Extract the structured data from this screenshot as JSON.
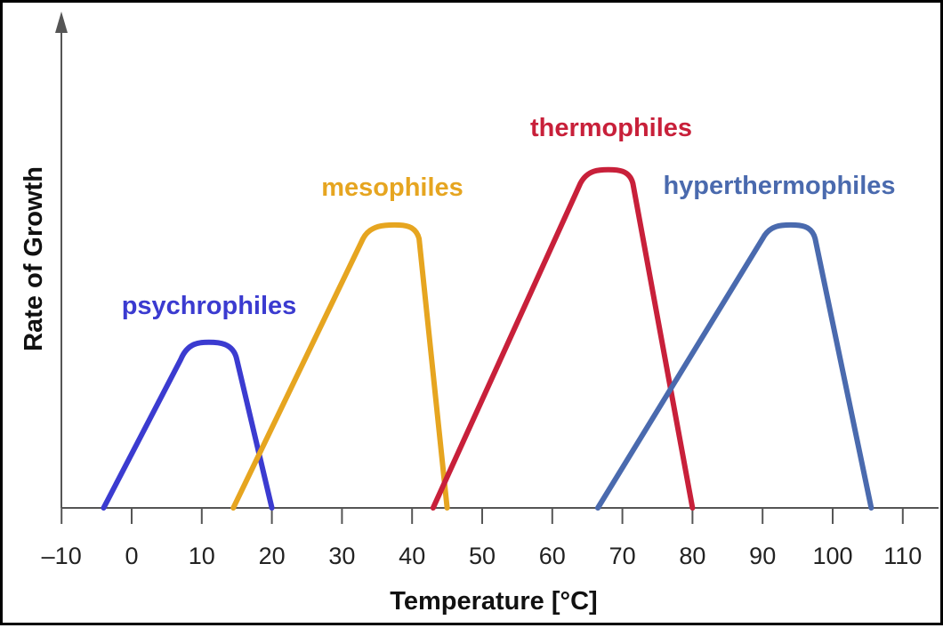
{
  "chart_data": {
    "type": "line",
    "title": "",
    "xlabel": "Temperature [°C]",
    "ylabel": "Rate of Growth",
    "xlim": [
      -10,
      112
    ],
    "ylim": [
      0,
      100
    ],
    "x_ticks": [
      -10,
      0,
      10,
      20,
      30,
      40,
      50,
      60,
      70,
      80,
      90,
      100,
      110
    ],
    "x_tick_labels": [
      "–10",
      "0",
      "10",
      "20",
      "30",
      "40",
      "50",
      "60",
      "70",
      "80",
      "90",
      "100",
      "110"
    ],
    "grid": false,
    "y_tick_labels_shown": false,
    "series": [
      {
        "name": "psychrophiles",
        "color": "#3b3bd0",
        "points": [
          [
            -4,
            0
          ],
          [
            7,
            43
          ],
          [
            11,
            48
          ],
          [
            15,
            43
          ],
          [
            20,
            0
          ]
        ]
      },
      {
        "name": "mesophiles",
        "color": "#e6a520",
        "points": [
          [
            14.5,
            0
          ],
          [
            33,
            78
          ],
          [
            37.5,
            82
          ],
          [
            41,
            78
          ],
          [
            45,
            0
          ]
        ]
      },
      {
        "name": "thermophiles",
        "color": "#c8203a",
        "points": [
          [
            43,
            0
          ],
          [
            64,
            94
          ],
          [
            68,
            98
          ],
          [
            71.5,
            94
          ],
          [
            80,
            0
          ]
        ]
      },
      {
        "name": "hyperthermophiles",
        "color": "#4a6aae",
        "points": [
          [
            66.5,
            0
          ],
          [
            90,
            78
          ],
          [
            94,
            82
          ],
          [
            97.5,
            78
          ],
          [
            105.5,
            0
          ]
        ]
      }
    ]
  }
}
